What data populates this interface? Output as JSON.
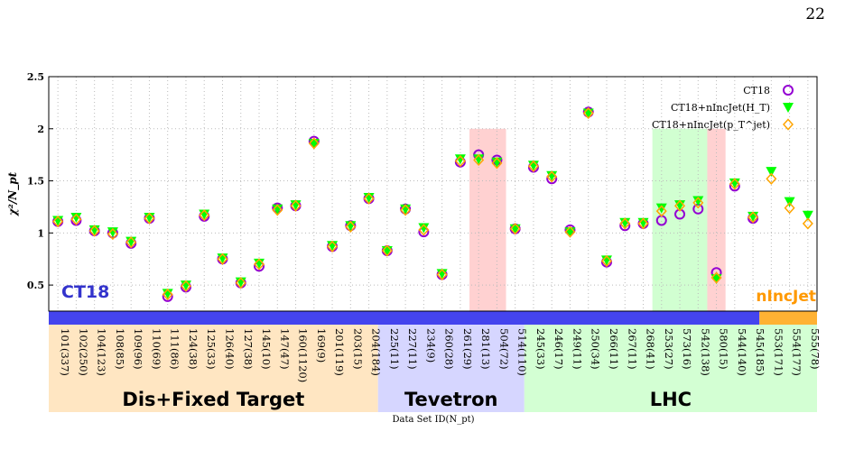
{
  "page_number": "22",
  "chart_data": {
    "type": "scatter",
    "ylabel": "χ²/N_pt",
    "xlabel": "Data Set ID(N_pt)",
    "ylim": [
      0.25,
      2.5
    ],
    "yticks": [
      0.5,
      1,
      1.5,
      2,
      2.5
    ],
    "categories": [
      "101(337)",
      "102(250)",
      "104(123)",
      "108(85)",
      "109(96)",
      "110(69)",
      "111(86)",
      "124(38)",
      "125(33)",
      "126(40)",
      "127(38)",
      "145(10)",
      "147(47)",
      "160(1120)",
      "169(9)",
      "201(119)",
      "203(15)",
      "204(184)",
      "225(11)",
      "227(11)",
      "234(9)",
      "260(28)",
      "261(29)",
      "281(13)",
      "504(72)",
      "514(110)",
      "245(33)",
      "246(17)",
      "249(11)",
      "250(34)",
      "266(11)",
      "267(11)",
      "268(41)",
      "253(27)",
      "573(16)",
      "542(138)",
      "580(15)",
      "544(140)",
      "545(185)",
      "553(171)",
      "554(177)",
      "555(78)"
    ],
    "series": [
      {
        "name": "CT18",
        "marker": "circle",
        "color": "#9400d3",
        "values": [
          1.11,
          1.12,
          1.02,
          1.0,
          0.9,
          1.14,
          0.39,
          0.48,
          1.16,
          0.75,
          0.52,
          0.68,
          1.24,
          1.26,
          1.88,
          0.87,
          1.07,
          1.33,
          0.83,
          1.23,
          1.01,
          0.6,
          1.68,
          1.75,
          1.7,
          1.04,
          1.63,
          1.52,
          1.03,
          2.16,
          0.72,
          1.07,
          1.09,
          1.12,
          1.18,
          1.23,
          0.62,
          1.45,
          1.14,
          null,
          null,
          null
        ]
      },
      {
        "name": "CT18+nIncJet(H_T)",
        "marker": "triangle-down",
        "color": "#00ff00",
        "values": [
          1.12,
          1.15,
          1.03,
          1.01,
          0.92,
          1.15,
          0.42,
          0.5,
          1.18,
          0.76,
          0.53,
          0.71,
          1.23,
          1.27,
          1.86,
          0.88,
          1.07,
          1.34,
          0.83,
          1.23,
          1.05,
          0.61,
          1.71,
          1.71,
          1.68,
          1.04,
          1.65,
          1.55,
          1.01,
          2.15,
          0.74,
          1.1,
          1.1,
          1.24,
          1.27,
          1.31,
          0.56,
          1.48,
          1.16,
          1.59,
          1.3,
          1.17
        ]
      },
      {
        "name": "CT18+nIncJet(p_T^jet)",
        "marker": "diamond",
        "color": "#ffa500",
        "values": [
          1.11,
          1.13,
          1.02,
          0.99,
          0.91,
          1.14,
          0.41,
          0.49,
          1.17,
          0.75,
          0.52,
          0.7,
          1.22,
          1.26,
          1.86,
          0.87,
          1.06,
          1.33,
          0.83,
          1.22,
          1.03,
          0.6,
          1.69,
          1.7,
          1.67,
          1.04,
          1.64,
          1.54,
          1.01,
          2.15,
          0.73,
          1.09,
          1.09,
          1.21,
          1.26,
          1.29,
          0.57,
          1.47,
          1.15,
          1.52,
          1.24,
          1.09
        ]
      }
    ],
    "legend_position": "top-right",
    "highlight_bands": [
      {
        "from": "281(13)",
        "to": "504(72)",
        "color": "#ffb3b3"
      },
      {
        "from": "253(27)",
        "to": "542(138)",
        "color": "#b3ffb3"
      },
      {
        "from": "580(15)",
        "to": "580(15)",
        "color": "#ffb3b3"
      }
    ],
    "bar_labels": {
      "left": "CT18",
      "right": "nIncJet"
    },
    "groups": [
      {
        "label": "Dis+Fixed Target",
        "from": 0,
        "to": 17,
        "color": "#ffe6c2"
      },
      {
        "label": "Tevetron",
        "from": 18,
        "to": 25,
        "color": "#d6d6ff"
      },
      {
        "label": "LHC",
        "from": 26,
        "to": 41,
        "color": "#d3ffd3"
      }
    ],
    "colors": {
      "ct18_bar": "#4444ee",
      "nincjet_bar": "#ffb233",
      "ct18_text": "#3333cc",
      "nincjet_text": "#ff9900"
    }
  }
}
